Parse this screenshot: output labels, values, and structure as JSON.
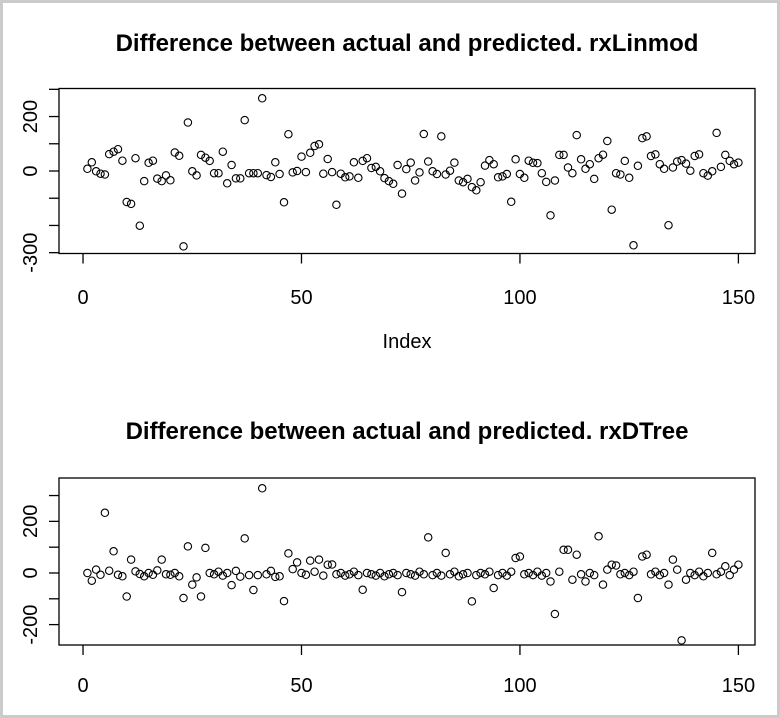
{
  "window": {
    "background": "#ffffff",
    "frame_border_color": "#cbcbcb",
    "plot_stroke_color": "#000000"
  },
  "chart_data": [
    {
      "type": "scatter",
      "title": "Difference between actual and predicted. rxLinmod",
      "xlabel": "Index",
      "ylabel": "",
      "marker": "open-circle",
      "x_start": 1,
      "xlim": [
        -5.5,
        153.8
      ],
      "ylim": [
        -303,
        303
      ],
      "x_ticks": [
        0,
        50,
        100,
        150
      ],
      "x_tick_labels": [
        "0",
        "50",
        "100",
        "150"
      ],
      "y_ticks": [
        300,
        200,
        100,
        0,
        -100,
        -200,
        -300
      ],
      "y_labeled_ticks": [
        {
          "value": 200,
          "label": "200"
        },
        {
          "value": 0,
          "label": "0"
        },
        {
          "value": -300,
          "label": "-300"
        }
      ],
      "values": [
        8,
        32,
        -1,
        -10,
        -13,
        62,
        71,
        80,
        38,
        -114,
        -121,
        47,
        -201,
        -37,
        30,
        38,
        -28,
        -37,
        -16,
        -34,
        68,
        56,
        -277,
        178,
        -1,
        -16,
        59,
        49,
        37,
        -8,
        -8,
        71,
        -45,
        22,
        -27,
        -27,
        187,
        -8,
        -8,
        -8,
        267,
        -15,
        -22,
        32,
        -11,
        -115,
        135,
        -5,
        0,
        53,
        -4,
        67,
        92,
        98,
        -10,
        44,
        -4,
        -124,
        -10,
        -23,
        -20,
        32,
        -25,
        37,
        47,
        11,
        15,
        -1,
        -26,
        -37,
        -47,
        22,
        -83,
        7,
        31,
        -35,
        -5,
        136,
        35,
        -1,
        -11,
        127,
        -13,
        1,
        31,
        -35,
        -41,
        -29,
        -59,
        -71,
        -41,
        20,
        40,
        25,
        -23,
        -20,
        -11,
        -113,
        43,
        -11,
        -25,
        38,
        30,
        29,
        -8,
        -40,
        -163,
        -35,
        59,
        59,
        13,
        -8,
        132,
        43,
        8,
        25,
        -29,
        47,
        60,
        110,
        -142,
        -8,
        -13,
        37,
        -25,
        -273,
        19,
        121,
        127,
        55,
        61,
        25,
        8,
        -199,
        13,
        35,
        40,
        27,
        1,
        55,
        61,
        -8,
        -17,
        -1,
        140,
        15,
        59,
        37,
        25,
        31
      ]
    },
    {
      "type": "scatter",
      "title": "Difference between actual and predicted. rxDTree",
      "xlabel": "",
      "ylabel": "",
      "marker": "open-circle",
      "x_start": 1,
      "xlim": [
        -5.5,
        153.8
      ],
      "ylim": [
        -279,
        368
      ],
      "x_ticks": [
        0,
        50,
        100,
        150
      ],
      "x_tick_labels": [
        "0",
        "50",
        "100",
        "150"
      ],
      "y_ticks": [
        300,
        200,
        100,
        0,
        -100,
        -200
      ],
      "y_labeled_ticks": [
        {
          "value": 200,
          "label": "200"
        },
        {
          "value": 0,
          "label": "0"
        },
        {
          "value": -200,
          "label": "-200"
        }
      ],
      "values": [
        0,
        -30,
        13,
        -7,
        233,
        9,
        84,
        -7,
        -13,
        -91,
        52,
        6,
        -4,
        -13,
        0,
        -7,
        10,
        52,
        -5,
        -7,
        0,
        -13,
        -97,
        103,
        -45,
        -17,
        -91,
        97,
        0,
        -5,
        5,
        -10,
        0,
        -47,
        8,
        -14,
        134,
        -8,
        -66,
        -8,
        328,
        -5,
        8,
        -15,
        -13,
        -109,
        76,
        15,
        41,
        0,
        -7,
        48,
        5,
        52,
        -10,
        32,
        33,
        -5,
        0,
        -10,
        -5,
        5,
        -8,
        -65,
        0,
        -5,
        -10,
        0,
        -13,
        -5,
        0,
        -8,
        -74,
        0,
        -5,
        -10,
        5,
        -5,
        138,
        -8,
        0,
        -10,
        78,
        -5,
        5,
        -13,
        -5,
        0,
        -110,
        -8,
        0,
        -5,
        5,
        -58,
        -8,
        0,
        -10,
        5,
        58,
        64,
        -5,
        0,
        -8,
        5,
        -10,
        0,
        -33,
        -159,
        5,
        90,
        90,
        -26,
        71,
        -5,
        -33,
        0,
        -8,
        142,
        -45,
        13,
        32,
        29,
        -5,
        0,
        -8,
        5,
        -97,
        64,
        71,
        -5,
        5,
        -8,
        0,
        -45,
        52,
        13,
        -261,
        -26,
        0,
        -8,
        5,
        -13,
        0,
        78,
        -5,
        5,
        26,
        -8,
        13,
        32
      ]
    }
  ]
}
